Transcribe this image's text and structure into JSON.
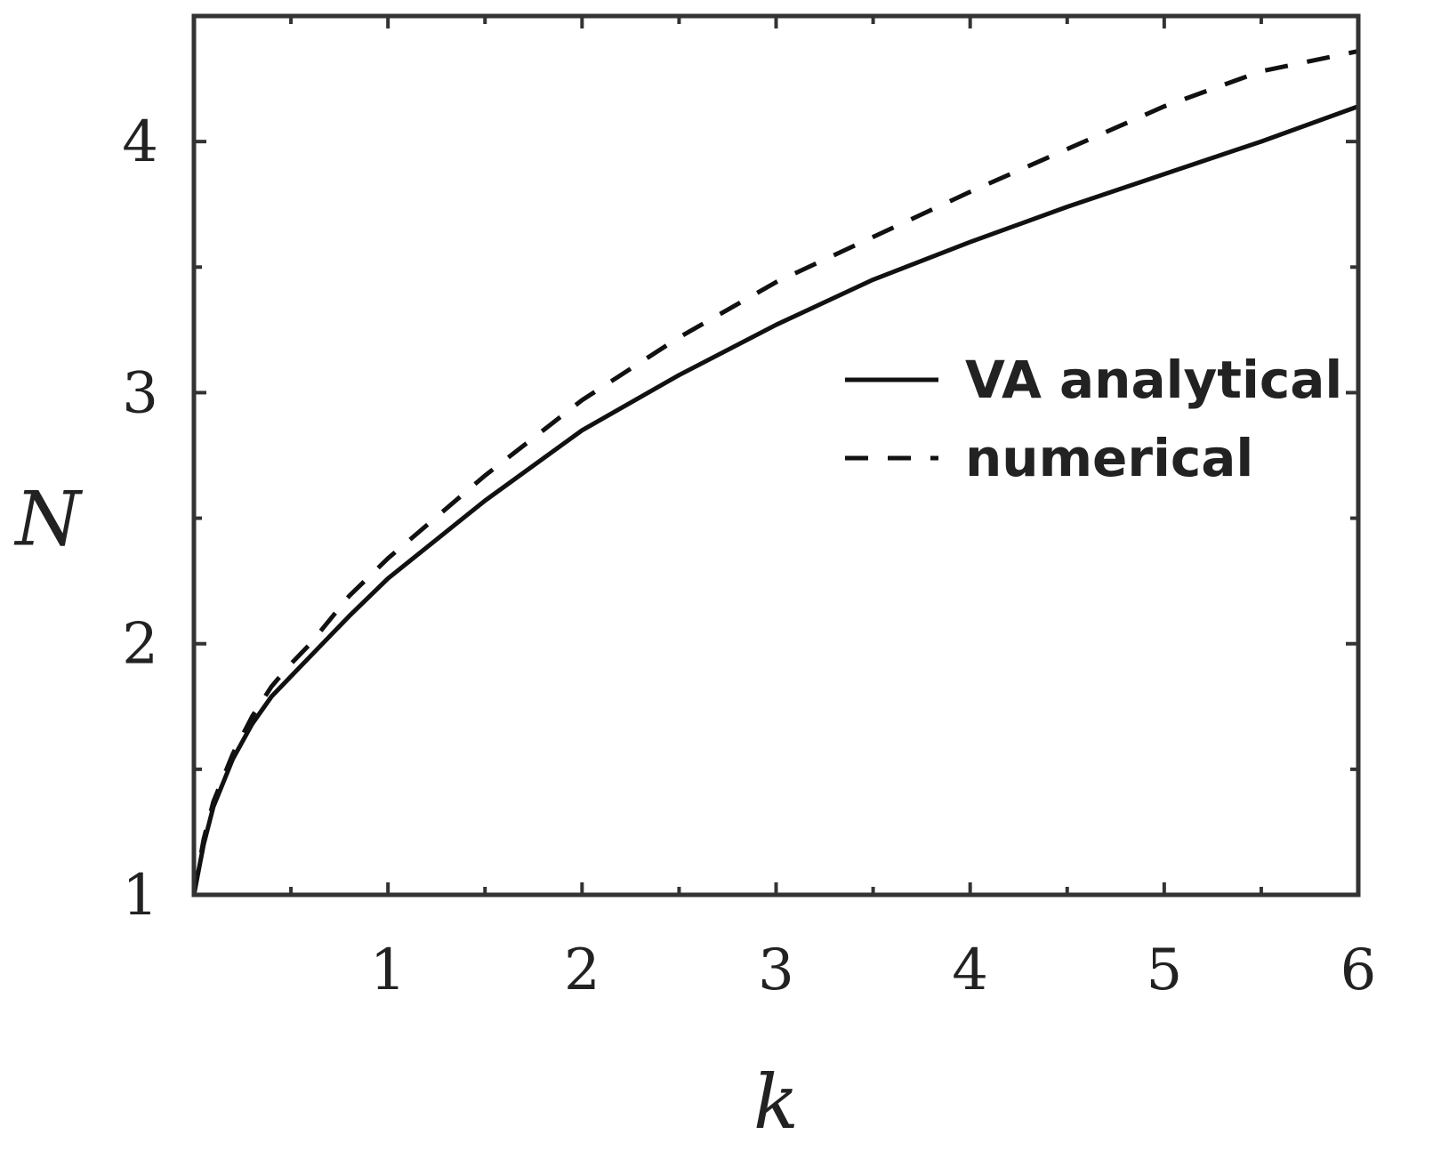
{
  "chart_data": {
    "type": "line",
    "title": "",
    "xlabel": "k",
    "ylabel": "N",
    "xlim": [
      0,
      6
    ],
    "ylim": [
      1,
      4.5
    ],
    "x_ticks": [
      1,
      2,
      3,
      4,
      5,
      6
    ],
    "x_tick_labels": [
      "1",
      "2",
      "3",
      "4",
      "5",
      "6"
    ],
    "y_ticks": [
      1,
      2,
      3,
      4
    ],
    "y_tick_labels": [
      "1",
      "2",
      "3",
      "4"
    ],
    "x_minor_ticks": [
      0.5,
      1.5,
      2.5,
      3.5,
      4.5,
      5.5
    ],
    "y_minor_ticks": [
      1.5,
      2.5,
      3.5
    ],
    "grid": false,
    "legend_position": "right",
    "series": [
      {
        "name": "VA analytical",
        "style": "solid",
        "color": "#111111",
        "x": [
          0,
          0.05,
          0.1,
          0.2,
          0.3,
          0.4,
          0.5,
          0.6,
          0.8,
          1.0,
          1.5,
          2.0,
          2.5,
          3.0,
          3.5,
          4.0,
          4.5,
          5.0,
          5.5,
          6.0
        ],
        "y": [
          1.0,
          1.2,
          1.35,
          1.54,
          1.68,
          1.79,
          1.87,
          1.95,
          2.11,
          2.26,
          2.57,
          2.85,
          3.07,
          3.27,
          3.45,
          3.6,
          3.74,
          3.87,
          4.0,
          4.14
        ]
      },
      {
        "name": "numerical",
        "style": "dashed",
        "color": "#111111",
        "x": [
          0,
          0.05,
          0.1,
          0.2,
          0.3,
          0.4,
          0.5,
          0.6,
          0.8,
          1.0,
          1.5,
          2.0,
          2.5,
          3.0,
          3.5,
          4.0,
          4.5,
          5.0,
          5.5,
          6.0
        ],
        "y": [
          1.0,
          1.22,
          1.37,
          1.56,
          1.71,
          1.83,
          1.92,
          2.0,
          2.19,
          2.34,
          2.67,
          2.97,
          3.22,
          3.44,
          3.62,
          3.8,
          3.97,
          4.14,
          4.28,
          4.36
        ]
      }
    ]
  }
}
